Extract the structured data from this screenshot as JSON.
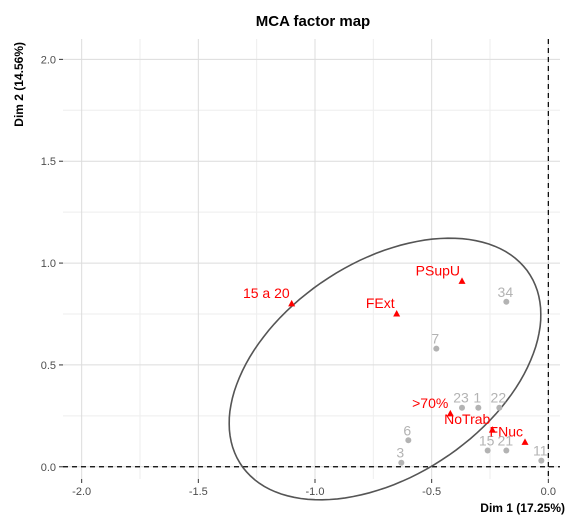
{
  "chart_data": {
    "type": "scatter",
    "title": "MCA factor map",
    "xlabel": "Dim 1 (17.25%)",
    "ylabel": "Dim 2 (14.56%)",
    "xlim": [
      -2.08,
      0.05
    ],
    "ylim": [
      -0.06,
      2.1
    ],
    "x_ticks": [
      -2.0,
      -1.5,
      -1.0,
      -0.5,
      0.0
    ],
    "x_tick_labels": [
      "-2.0",
      "-1.5",
      "-1.0",
      "-0.5",
      "0.0"
    ],
    "y_ticks": [
      0.0,
      0.5,
      1.0,
      1.5,
      2.0
    ],
    "y_tick_labels": [
      "0.0",
      "0.5",
      "1.0",
      "1.5",
      "2.0"
    ],
    "grid": true,
    "reference_lines": {
      "x": 0,
      "y": 0,
      "style": "dashed"
    },
    "colors": {
      "categories": "#ff0000",
      "individuals": "#b3b3b3",
      "ellipse": "#555555",
      "grid": "#dcdcdc"
    },
    "ellipse": {
      "center": [
        -0.7,
        0.48
      ],
      "rx": 0.78,
      "ry": 0.5,
      "angle_deg": 42.3
    },
    "categories": [
      {
        "label": "15 a 20",
        "x": -1.1,
        "y": 0.8
      },
      {
        "label": "PSupU",
        "x": -0.37,
        "y": 0.91
      },
      {
        "label": "FExt",
        "x": -0.65,
        "y": 0.75
      },
      {
        "label": ">70%",
        "x": -0.42,
        "y": 0.26
      },
      {
        "label": "NoTrab",
        "x": -0.24,
        "y": 0.18
      },
      {
        "label": "FNuc",
        "x": -0.1,
        "y": 0.12
      }
    ],
    "individuals": [
      {
        "label": "34",
        "x": -0.18,
        "y": 0.81
      },
      {
        "label": "7",
        "x": -0.48,
        "y": 0.58
      },
      {
        "label": "23",
        "x": -0.37,
        "y": 0.29
      },
      {
        "label": "1",
        "x": -0.3,
        "y": 0.29
      },
      {
        "label": "22",
        "x": -0.21,
        "y": 0.29
      },
      {
        "label": "6",
        "x": -0.6,
        "y": 0.13
      },
      {
        "label": "15",
        "x": -0.26,
        "y": 0.08
      },
      {
        "label": "21",
        "x": -0.18,
        "y": 0.08
      },
      {
        "label": "11",
        "x": -0.03,
        "y": 0.03
      },
      {
        "label": "3",
        "x": -0.63,
        "y": 0.02
      }
    ]
  }
}
